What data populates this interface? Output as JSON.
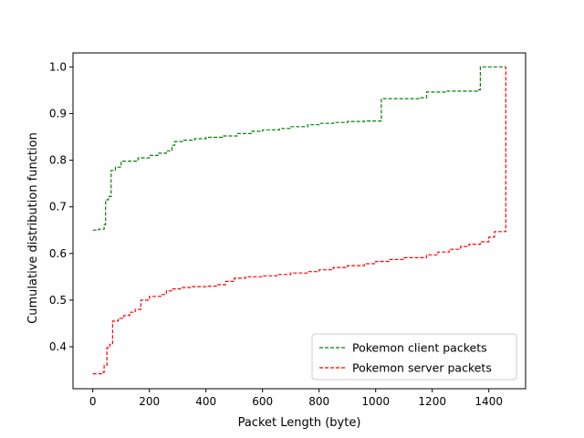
{
  "chart_data": {
    "type": "line",
    "xlabel": "Packet Length (byte)",
    "ylabel": "Cumulative distribution function",
    "xlim": [
      -70,
      1530
    ],
    "ylim": [
      0.31,
      1.03
    ],
    "xticks": [
      0,
      200,
      400,
      600,
      800,
      1000,
      1200,
      1400
    ],
    "yticks": [
      0.4,
      0.5,
      0.6,
      0.7,
      0.8,
      0.9,
      1.0
    ],
    "grid": false,
    "legend_position": "lower-right",
    "series": [
      {
        "name": "Pokemon client packets",
        "color": "#008000",
        "dash": "dashed",
        "step": true,
        "x": [
          0,
          20,
          40,
          45,
          55,
          65,
          80,
          100,
          160,
          200,
          230,
          260,
          280,
          290,
          320,
          360,
          400,
          460,
          510,
          560,
          600,
          660,
          700,
          760,
          800,
          850,
          900,
          960,
          1020,
          1160,
          1180,
          1250,
          1360,
          1370,
          1460
        ],
        "y": [
          0.65,
          0.652,
          0.662,
          0.715,
          0.722,
          0.778,
          0.785,
          0.798,
          0.805,
          0.81,
          0.815,
          0.82,
          0.832,
          0.84,
          0.843,
          0.846,
          0.849,
          0.852,
          0.857,
          0.862,
          0.865,
          0.868,
          0.872,
          0.876,
          0.879,
          0.881,
          0.883,
          0.884,
          0.932,
          0.934,
          0.946,
          0.948,
          0.951,
          1.0,
          1.0
        ]
      },
      {
        "name": "Pokemon server packets",
        "color": "#ff0000",
        "dash": "dashed",
        "step": true,
        "x": [
          0,
          30,
          40,
          50,
          60,
          70,
          90,
          110,
          130,
          150,
          170,
          200,
          240,
          260,
          280,
          310,
          350,
          400,
          440,
          470,
          500,
          540,
          600,
          650,
          700,
          760,
          800,
          850,
          900,
          960,
          1000,
          1050,
          1100,
          1180,
          1220,
          1260,
          1300,
          1330,
          1370,
          1400,
          1420,
          1460
        ],
        "y": [
          0.342,
          0.345,
          0.36,
          0.398,
          0.405,
          0.455,
          0.461,
          0.467,
          0.474,
          0.48,
          0.5,
          0.508,
          0.512,
          0.52,
          0.524,
          0.527,
          0.529,
          0.53,
          0.533,
          0.54,
          0.547,
          0.55,
          0.552,
          0.555,
          0.558,
          0.561,
          0.565,
          0.57,
          0.574,
          0.578,
          0.583,
          0.587,
          0.591,
          0.597,
          0.603,
          0.609,
          0.615,
          0.62,
          0.625,
          0.635,
          0.647,
          1.0
        ]
      }
    ]
  }
}
